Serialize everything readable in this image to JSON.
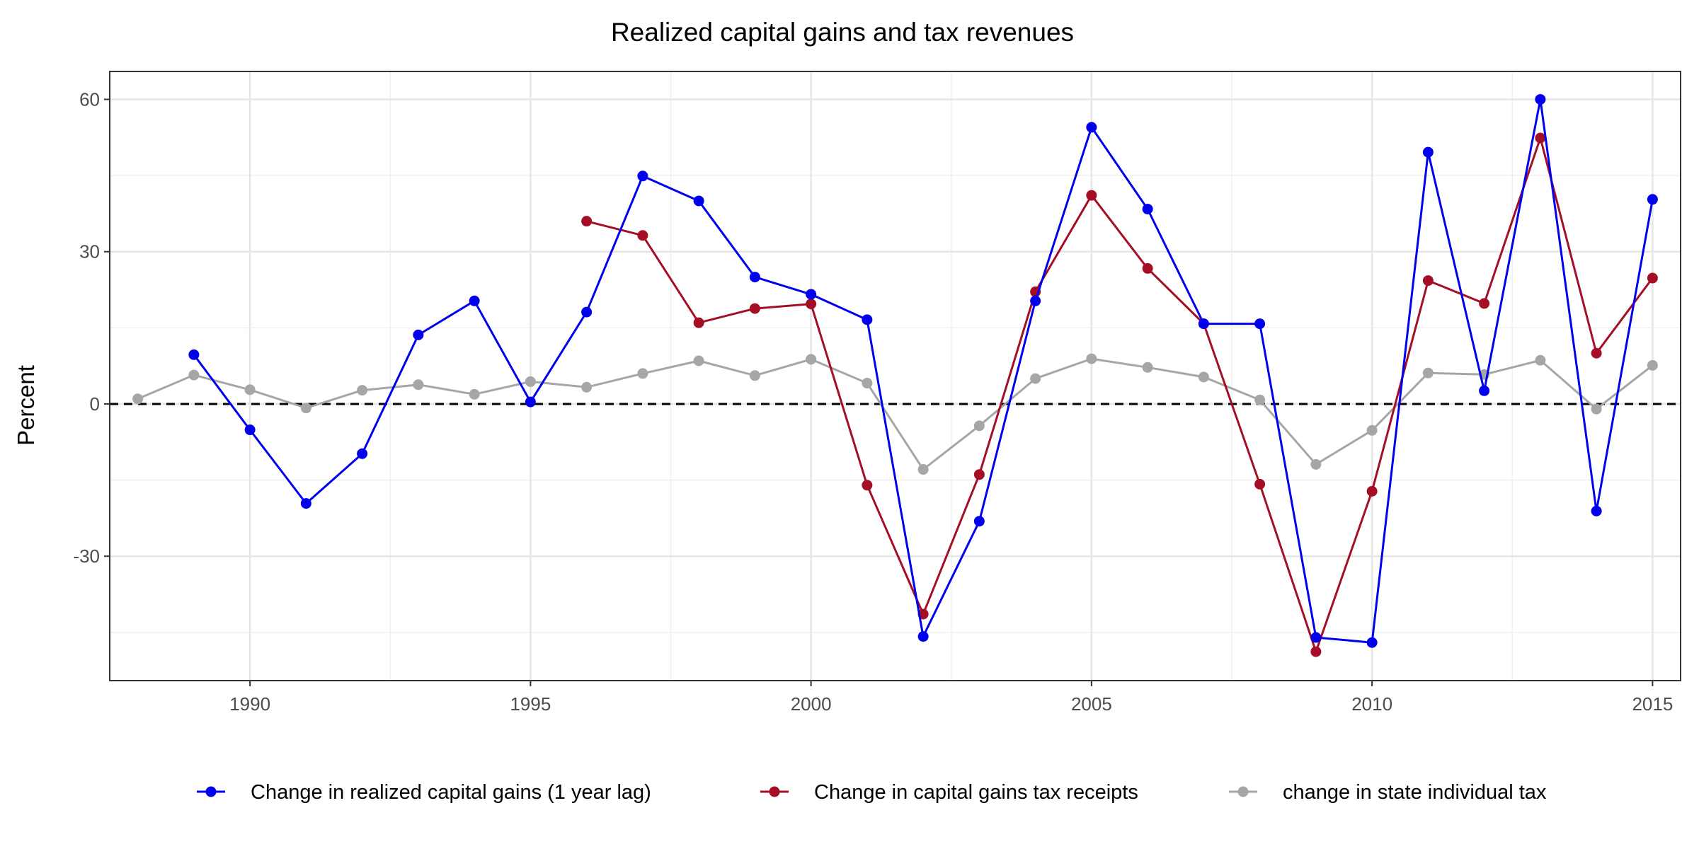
{
  "chart_data": {
    "type": "line",
    "title": "Realized capital gains and tax revenues",
    "xlabel": "",
    "ylabel": "Percent",
    "xlim": [
      1987.5,
      2015.5
    ],
    "ylim": [
      -54.5,
      65.5
    ],
    "x_ticks": [
      1990,
      1995,
      2000,
      2005,
      2010,
      2015
    ],
    "x_tick_labels": [
      "1990",
      "1995",
      "2000",
      "2005",
      "2010",
      "2015"
    ],
    "y_ticks": [
      -30,
      0,
      30,
      60
    ],
    "y_tick_labels": [
      "-30",
      "0",
      "30",
      "60"
    ],
    "reference_line": {
      "y": 0,
      "style": "dashed"
    },
    "grid": true,
    "legend_position": "bottom",
    "series": [
      {
        "name": "Change in realized capital gains (1 year lag)",
        "color": "#0000ee",
        "x": [
          1989,
          1990,
          1991,
          1992,
          1993,
          1994,
          1995,
          1996,
          1997,
          1998,
          1999,
          2000,
          2001,
          2002,
          2003,
          2004,
          2005,
          2006,
          2007,
          2008,
          2009,
          2010,
          2011,
          2012,
          2013,
          2014,
          2015
        ],
        "values": [
          9.7,
          -5.1,
          -19.6,
          -9.8,
          13.6,
          20.3,
          0.4,
          18.1,
          44.9,
          40.0,
          25.0,
          21.6,
          16.6,
          -45.8,
          -23.1,
          20.3,
          54.5,
          38.4,
          15.8,
          15.8,
          -46.0,
          -47.0,
          49.6,
          2.6,
          60.0,
          -21.1,
          40.3
        ]
      },
      {
        "name": "Change in capital gains tax receipts",
        "color": "#a50f25",
        "x": [
          1996,
          1997,
          1998,
          1999,
          2000,
          2001,
          2002,
          2003,
          2004,
          2005,
          2006,
          2007,
          2008,
          2009,
          2010,
          2011,
          2012,
          2013,
          2014,
          2015
        ],
        "values": [
          36.0,
          33.2,
          16.0,
          18.8,
          19.7,
          -16.0,
          -41.4,
          -13.9,
          22.1,
          41.1,
          26.7,
          15.8,
          -15.8,
          -48.8,
          -17.2,
          24.3,
          19.8,
          52.4,
          10.0,
          24.8
        ]
      },
      {
        "name": "change in state individual tax",
        "color": "#a6a6a6",
        "x": [
          1988,
          1989,
          1990,
          1991,
          1992,
          1993,
          1994,
          1995,
          1996,
          1997,
          1998,
          1999,
          2000,
          2001,
          2002,
          2003,
          2004,
          2005,
          2006,
          2007,
          2008,
          2009,
          2010,
          2011,
          2012,
          2013,
          2014,
          2015
        ],
        "values": [
          1.0,
          5.7,
          2.8,
          -0.8,
          2.7,
          3.8,
          1.9,
          4.4,
          3.3,
          6.0,
          8.5,
          5.6,
          8.8,
          4.1,
          -12.9,
          -4.3,
          5.0,
          8.9,
          7.2,
          5.3,
          0.8,
          -11.9,
          -5.2,
          6.1,
          5.8,
          8.6,
          -1.0,
          7.6
        ]
      }
    ]
  }
}
